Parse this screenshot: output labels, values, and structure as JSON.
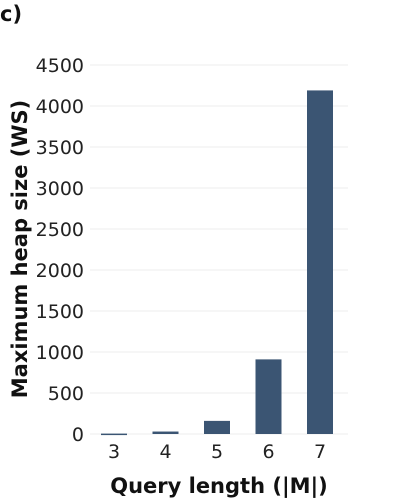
{
  "panel_label": "c)",
  "chart_data": {
    "type": "bar",
    "categories": [
      "3",
      "4",
      "5",
      "6",
      "7"
    ],
    "values": [
      5,
      30,
      160,
      910,
      4190
    ],
    "xlabel": "Query length (|M|)",
    "ylabel": "Maximum heap size (WS)",
    "ylim": [
      0,
      4500
    ],
    "yticks": [
      0,
      500,
      1000,
      1500,
      2000,
      2500,
      3000,
      3500,
      4000,
      4500
    ],
    "grid": true,
    "bar_color": "#3b5573",
    "grid_color": "#eeeeee"
  }
}
